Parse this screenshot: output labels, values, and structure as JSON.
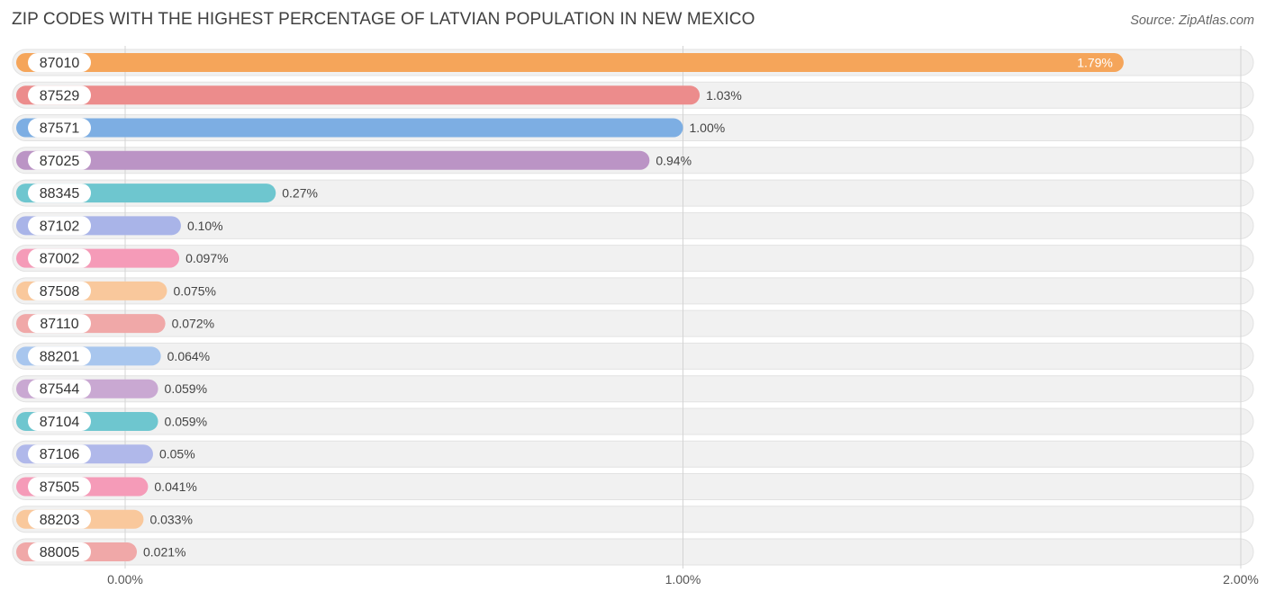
{
  "title": "ZIP CODES WITH THE HIGHEST PERCENTAGE OF LATVIAN POPULATION IN NEW MEXICO",
  "source": "Source: ZipAtlas.com",
  "chart_data": {
    "type": "bar",
    "orientation": "horizontal",
    "title": "ZIP CODES WITH THE HIGHEST PERCENTAGE OF LATVIAN POPULATION IN NEW MEXICO",
    "categories": [
      "87010",
      "87529",
      "87571",
      "87025",
      "88345",
      "87102",
      "87002",
      "87508",
      "87110",
      "88201",
      "87544",
      "87104",
      "87106",
      "87505",
      "88203",
      "88005"
    ],
    "values": [
      1.79,
      1.03,
      1.0,
      0.94,
      0.27,
      0.1,
      0.097,
      0.075,
      0.072,
      0.064,
      0.059,
      0.059,
      0.05,
      0.041,
      0.033,
      0.021
    ],
    "value_labels": [
      "1.79%",
      "1.03%",
      "1.00%",
      "0.94%",
      "0.27%",
      "0.10%",
      "0.097%",
      "0.075%",
      "0.072%",
      "0.064%",
      "0.059%",
      "0.059%",
      "0.05%",
      "0.041%",
      "0.033%",
      "0.021%"
    ],
    "colors": [
      "#f5a55a",
      "#ec8c8c",
      "#7daee3",
      "#bb94c5",
      "#6ec6cf",
      "#a9b4e8",
      "#f59bb8",
      "#f9c89c",
      "#f0a8a8",
      "#a8c6ee",
      "#c9a8d2",
      "#6ec6cf",
      "#b0b8ea",
      "#f59bb8",
      "#f9c89c",
      "#f0a8a8"
    ],
    "xlim": [
      0,
      2.0
    ],
    "xticks": [
      0,
      1.0,
      2.0
    ],
    "xtick_labels": [
      "0.00%",
      "1.00%",
      "2.00%"
    ],
    "grid": true
  }
}
